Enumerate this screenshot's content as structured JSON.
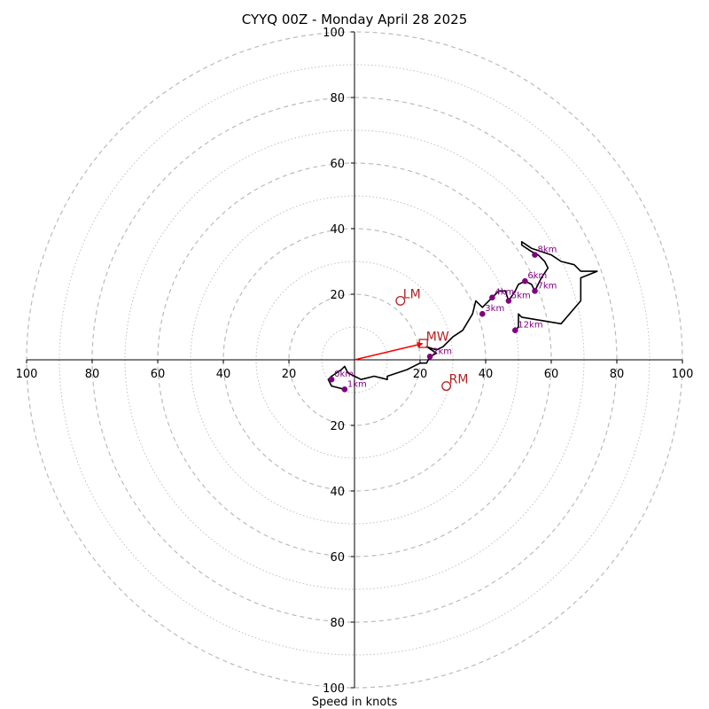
{
  "chart_data": {
    "type": "hodograph",
    "title": "CYYQ 00Z - Monday April 28 2025",
    "xlabel": "Speed in knots",
    "max_speed": 100,
    "ring_major_step": 20,
    "ring_minor_step": 10,
    "tick_labels": [
      "20",
      "40",
      "60",
      "80",
      "100"
    ],
    "ticks": [
      20,
      40,
      60,
      80,
      100
    ],
    "colors": {
      "trace": "#000000",
      "height_marker": "#800080",
      "motion": "#b22222",
      "mean_wind_vector": "#ff0000",
      "ring": "#bbbbbb"
    },
    "trace": [
      [
        -3,
        -9
      ],
      [
        -7,
        -8
      ],
      [
        -8,
        -6
      ],
      [
        -7,
        -5
      ],
      [
        -4,
        -3
      ],
      [
        -3,
        -2
      ],
      [
        -2,
        -4
      ],
      [
        0,
        -5
      ],
      [
        2,
        -6
      ],
      [
        6,
        -5
      ],
      [
        10,
        -6
      ],
      [
        10,
        -5
      ],
      [
        16,
        -3
      ],
      [
        20,
        -1
      ],
      [
        22,
        -1
      ],
      [
        23,
        1
      ],
      [
        25,
        2
      ],
      [
        22,
        4
      ],
      [
        25,
        3
      ],
      [
        27,
        4
      ],
      [
        30,
        7
      ],
      [
        33,
        9
      ],
      [
        36,
        14
      ],
      [
        37,
        18
      ],
      [
        39,
        16
      ],
      [
        40,
        17
      ],
      [
        42,
        19
      ],
      [
        44,
        21
      ],
      [
        46,
        21
      ],
      [
        47,
        18
      ],
      [
        49,
        21
      ],
      [
        50,
        23
      ],
      [
        52,
        24
      ],
      [
        54,
        23
      ],
      [
        55,
        21
      ],
      [
        56,
        23
      ],
      [
        57,
        25
      ],
      [
        59,
        28
      ],
      [
        58,
        30
      ],
      [
        56,
        32
      ],
      [
        54,
        33
      ],
      [
        51,
        35
      ],
      [
        51,
        36
      ],
      [
        54,
        34
      ],
      [
        57,
        33
      ],
      [
        60,
        32
      ],
      [
        63,
        30
      ],
      [
        67,
        29
      ],
      [
        69,
        27
      ],
      [
        74,
        27
      ],
      [
        69,
        25
      ],
      [
        69,
        18
      ],
      [
        63,
        11
      ],
      [
        51,
        13
      ],
      [
        50,
        14
      ],
      [
        50,
        13
      ],
      [
        50,
        11
      ],
      [
        50,
        10
      ],
      [
        49,
        9
      ]
    ],
    "height_markers": [
      {
        "label": "0km",
        "u": -7,
        "v": -6
      },
      {
        "label": "1km",
        "u": -3,
        "v": -9
      },
      {
        "label": "2km",
        "u": 23,
        "v": 1
      },
      {
        "label": "3km",
        "u": 39,
        "v": 14
      },
      {
        "label": "4km",
        "u": 42,
        "v": 19
      },
      {
        "label": "5km",
        "u": 47,
        "v": 18
      },
      {
        "label": "6km",
        "u": 52,
        "v": 24
      },
      {
        "label": "7km",
        "u": 55,
        "v": 21
      },
      {
        "label": "8km",
        "u": 55,
        "v": 32
      },
      {
        "label": "12km",
        "u": 49,
        "v": 9
      }
    ],
    "storm_motion": [
      {
        "label": "LM",
        "u": 14,
        "v": 18,
        "marker": "circle"
      },
      {
        "label": "MW",
        "u": 21,
        "v": 5,
        "marker": "square"
      },
      {
        "label": "RM",
        "u": 28,
        "v": -8,
        "marker": "circle"
      }
    ],
    "mean_wind_vector": {
      "u": 21,
      "v": 5
    }
  }
}
